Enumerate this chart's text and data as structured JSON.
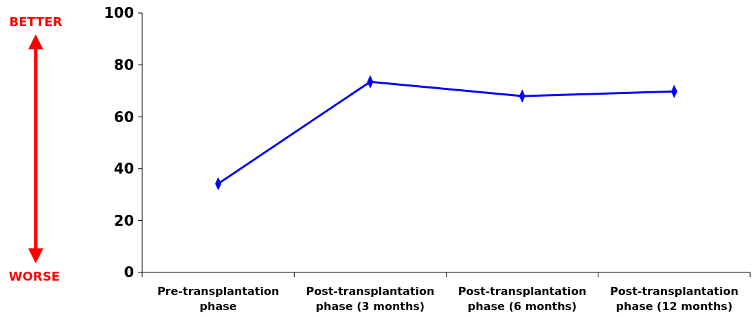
{
  "chart_data": {
    "type": "line",
    "categories": [
      "Pre-transplantation phase",
      "Post-transplantation phase (3 months)",
      "Post-transplantation phase (6 months)",
      "Post-transplantation phase (12 months)"
    ],
    "series": [
      {
        "color": "#0000ff",
        "values": [
          34.2,
          73.5,
          68,
          69.8
        ]
      }
    ],
    "ylim": [
      0,
      100
    ],
    "yticks": [
      0,
      20,
      40,
      60,
      80,
      100
    ],
    "marker": "diamond",
    "line_style": "solid",
    "annotations": [
      "BETTER",
      "WORSE"
    ]
  }
}
